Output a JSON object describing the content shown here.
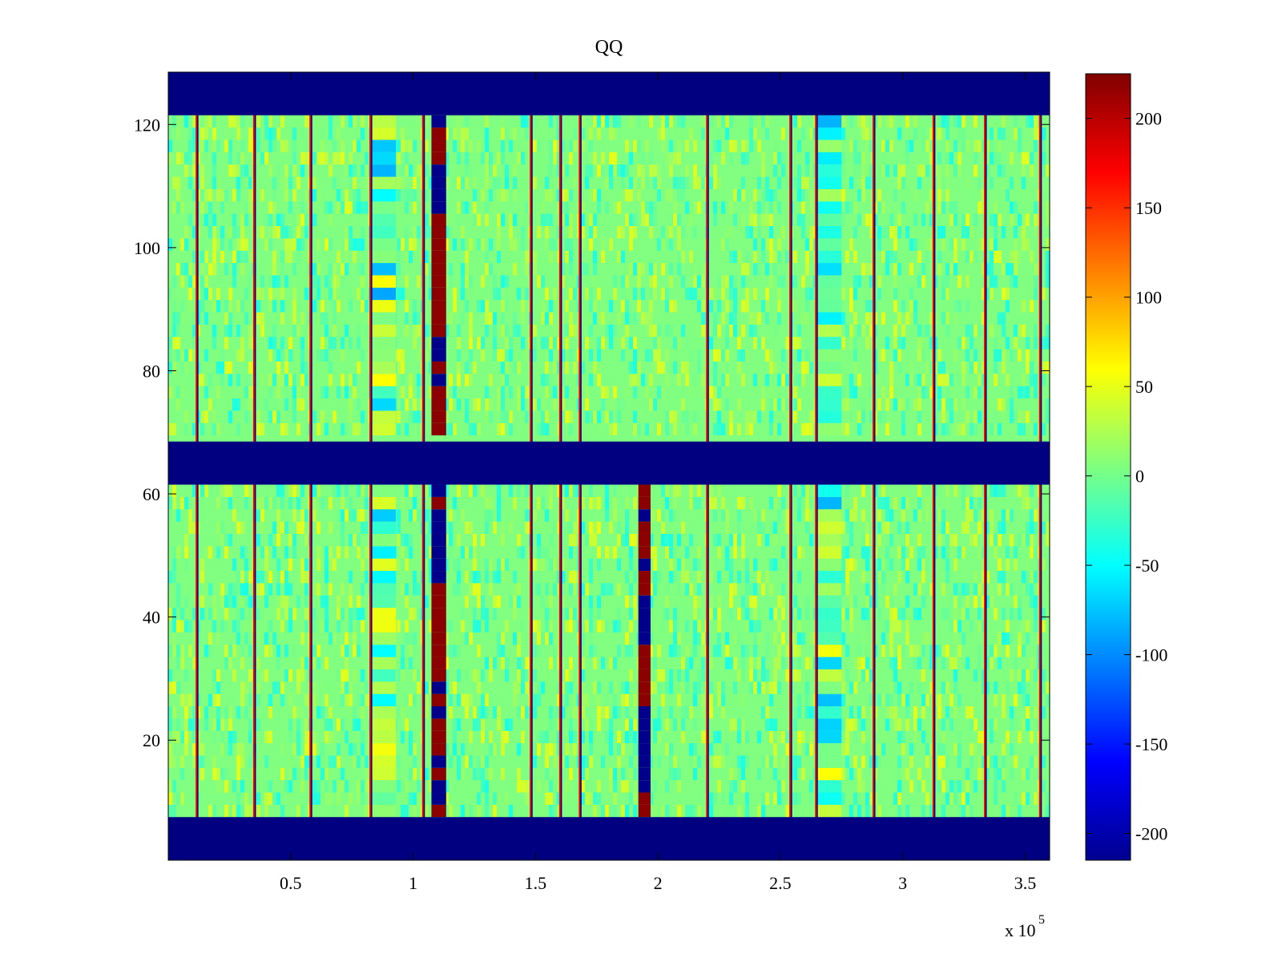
{
  "chart_data": {
    "type": "heatmap",
    "title": "QQ",
    "xlabel": "",
    "ylabel": "",
    "colormap": "jet",
    "x_range": [
      0,
      360000
    ],
    "y_range": [
      0.5,
      128.5
    ],
    "x_multiplier_label": "x 10",
    "x_multiplier_exponent": "5",
    "x_ticks": [
      {
        "value": 50000,
        "label": "0.5"
      },
      {
        "value": 100000,
        "label": "1"
      },
      {
        "value": 150000,
        "label": "1.5"
      },
      {
        "value": 200000,
        "label": "2"
      },
      {
        "value": 250000,
        "label": "2.5"
      },
      {
        "value": 300000,
        "label": "3"
      },
      {
        "value": 350000,
        "label": "3.5"
      }
    ],
    "y_ticks": [
      {
        "value": 20,
        "label": "20"
      },
      {
        "value": 40,
        "label": "40"
      },
      {
        "value": 60,
        "label": "60"
      },
      {
        "value": 80,
        "label": "80"
      },
      {
        "value": 100,
        "label": "100"
      },
      {
        "value": 120,
        "label": "120"
      }
    ],
    "colorbar": {
      "range": [
        -215,
        225
      ],
      "ticks": [
        {
          "value": 200,
          "label": "200"
        },
        {
          "value": 150,
          "label": "150"
        },
        {
          "value": 100,
          "label": "100"
        },
        {
          "value": 50,
          "label": "50"
        },
        {
          "value": 0,
          "label": "0"
        },
        {
          "value": -50,
          "label": "-50"
        },
        {
          "value": -100,
          "label": "-100"
        },
        {
          "value": -150,
          "label": "-150"
        },
        {
          "value": -200,
          "label": "-200"
        }
      ]
    },
    "background_level": 5,
    "masked_rows": [
      {
        "from": 121.5,
        "to": 128.5,
        "value": -215
      },
      {
        "from": 61.5,
        "to": 68.5,
        "value": -215
      },
      {
        "from": 0.5,
        "to": 7.5,
        "value": -215
      }
    ],
    "thin_stripes_x": [
      11500,
      35000,
      58000,
      82500,
      104000,
      148000,
      160000,
      168000,
      220000,
      254000,
      264500,
      288000,
      312500,
      333500,
      356000
    ],
    "strong_columns": [
      {
        "x_from": 107500,
        "x_to": 113500,
        "rows_from": 7.5,
        "rows_to": 121.5,
        "pattern": "alternating"
      },
      {
        "x_from": 192000,
        "x_to": 197000,
        "rows_from": 7.5,
        "rows_to": 61.5,
        "pattern": "alternating"
      }
    ],
    "weak_columns_x": [
      88000,
      270000
    ]
  }
}
